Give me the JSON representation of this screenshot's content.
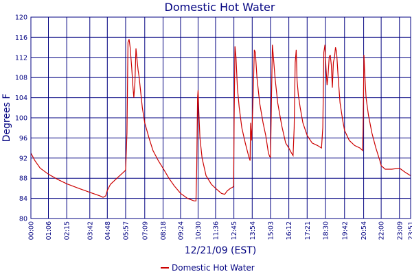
{
  "chart_data": {
    "type": "line",
    "title": "Domestic Hot Water",
    "xlabel": "12/21/09 (EST)",
    "ylabel": "Degrees F",
    "ylim": [
      80,
      120
    ],
    "yticks": [
      80,
      84,
      88,
      92,
      96,
      100,
      104,
      108,
      112,
      116,
      120
    ],
    "xlim": [
      0,
      1431
    ],
    "xticks": [
      {
        "label": "00:00",
        "min": 0
      },
      {
        "label": "01:06",
        "min": 66
      },
      {
        "label": "02:15",
        "min": 135
      },
      {
        "label": "03:42",
        "min": 222
      },
      {
        "label": "04:48",
        "min": 288
      },
      {
        "label": "05:57",
        "min": 357
      },
      {
        "label": "07:09",
        "min": 429
      },
      {
        "label": "08:18",
        "min": 498
      },
      {
        "label": "09:24",
        "min": 564
      },
      {
        "label": "10:30",
        "min": 630
      },
      {
        "label": "11:36",
        "min": 696
      },
      {
        "label": "12:45",
        "min": 765
      },
      {
        "label": "13:54",
        "min": 834
      },
      {
        "label": "15:03",
        "min": 903
      },
      {
        "label": "16:12",
        "min": 972
      },
      {
        "label": "17:21",
        "min": 1041
      },
      {
        "label": "18:30",
        "min": 1110
      },
      {
        "label": "19:42",
        "min": 1182
      },
      {
        "label": "20:54",
        "min": 1254
      },
      {
        "label": "22:00",
        "min": 1320
      },
      {
        "label": "23:09",
        "min": 1389
      },
      {
        "label": "23:51",
        "min": 1431
      }
    ],
    "grid": true,
    "legend_position": "bottom",
    "series": [
      {
        "name": "Domestic Hot Water",
        "color": "#cc0000",
        "points": [
          [
            0,
            93.0
          ],
          [
            15,
            91.5
          ],
          [
            35,
            90.0
          ],
          [
            66,
            88.8
          ],
          [
            100,
            87.8
          ],
          [
            135,
            86.9
          ],
          [
            180,
            86.0
          ],
          [
            222,
            85.2
          ],
          [
            260,
            84.5
          ],
          [
            272,
            84.2
          ],
          [
            282,
            84.5
          ],
          [
            288,
            85.6
          ],
          [
            300,
            86.8
          ],
          [
            320,
            87.8
          ],
          [
            345,
            89.0
          ],
          [
            355,
            89.5
          ],
          [
            357,
            89.7
          ],
          [
            362,
            97.0
          ],
          [
            366,
            115.0
          ],
          [
            370,
            115.6
          ],
          [
            374,
            114.0
          ],
          [
            380,
            110.0
          ],
          [
            384,
            106.5
          ],
          [
            388,
            104.0
          ],
          [
            392,
            107.0
          ],
          [
            396,
            113.8
          ],
          [
            400,
            111.5
          ],
          [
            404,
            109.5
          ],
          [
            408,
            108.0
          ],
          [
            413,
            105.5
          ],
          [
            420,
            102.0
          ],
          [
            429,
            99.0
          ],
          [
            445,
            96.0
          ],
          [
            460,
            93.5
          ],
          [
            480,
            91.5
          ],
          [
            498,
            90.0
          ],
          [
            520,
            88.0
          ],
          [
            540,
            86.5
          ],
          [
            564,
            85.0
          ],
          [
            590,
            84.0
          ],
          [
            615,
            83.5
          ],
          [
            622,
            83.5
          ],
          [
            625,
            90.0
          ],
          [
            628,
            104.0
          ],
          [
            630,
            105.5
          ],
          [
            633,
            101.0
          ],
          [
            637,
            96.0
          ],
          [
            645,
            92.0
          ],
          [
            660,
            88.5
          ],
          [
            680,
            86.8
          ],
          [
            696,
            86.0
          ],
          [
            718,
            85.0
          ],
          [
            730,
            84.8
          ],
          [
            740,
            85.5
          ],
          [
            752,
            86.0
          ],
          [
            760,
            86.2
          ],
          [
            764,
            86.4
          ],
          [
            766,
            100.0
          ],
          [
            769,
            114.2
          ],
          [
            773,
            112.0
          ],
          [
            778,
            106.0
          ],
          [
            785,
            102.0
          ],
          [
            795,
            98.0
          ],
          [
            808,
            95.0
          ],
          [
            820,
            92.5
          ],
          [
            826,
            91.5
          ],
          [
            828,
            99.0
          ],
          [
            832,
            95.5
          ],
          [
            838,
            105.0
          ],
          [
            842,
            113.5
          ],
          [
            846,
            113.0
          ],
          [
            852,
            108.0
          ],
          [
            862,
            103.0
          ],
          [
            875,
            99.0
          ],
          [
            885,
            96.5
          ],
          [
            895,
            93.0
          ],
          [
            900,
            92.3
          ],
          [
            903,
            92.2
          ],
          [
            907,
            105.0
          ],
          [
            910,
            114.5
          ],
          [
            914,
            112.0
          ],
          [
            920,
            108.0
          ],
          [
            930,
            103.0
          ],
          [
            945,
            98.5
          ],
          [
            960,
            95.0
          ],
          [
            972,
            94.0
          ],
          [
            982,
            93.0
          ],
          [
            988,
            92.5
          ],
          [
            992,
            98.0
          ],
          [
            996,
            111.0
          ],
          [
            1000,
            113.5
          ],
          [
            1003,
            107.5
          ],
          [
            1008,
            104.5
          ],
          [
            1015,
            102.0
          ],
          [
            1025,
            99.0
          ],
          [
            1041,
            96.5
          ],
          [
            1060,
            95.0
          ],
          [
            1080,
            94.5
          ],
          [
            1095,
            94.0
          ],
          [
            1100,
            98.0
          ],
          [
            1104,
            113.0
          ],
          [
            1108,
            114.5
          ],
          [
            1112,
            110.0
          ],
          [
            1116,
            106.5
          ],
          [
            1120,
            108.5
          ],
          [
            1124,
            112.0
          ],
          [
            1128,
            112.5
          ],
          [
            1132,
            110.5
          ],
          [
            1136,
            106.0
          ],
          [
            1140,
            111.0
          ],
          [
            1144,
            112.0
          ],
          [
            1148,
            114.0
          ],
          [
            1152,
            113.0
          ],
          [
            1158,
            108.0
          ],
          [
            1165,
            103.0
          ],
          [
            1175,
            99.5
          ],
          [
            1182,
            97.5
          ],
          [
            1200,
            95.5
          ],
          [
            1220,
            94.5
          ],
          [
            1240,
            94.0
          ],
          [
            1250,
            93.5
          ],
          [
            1252,
            98.0
          ],
          [
            1255,
            112.5
          ],
          [
            1258,
            109.0
          ],
          [
            1263,
            104.0
          ],
          [
            1272,
            100.5
          ],
          [
            1285,
            97.0
          ],
          [
            1300,
            94.0
          ],
          [
            1315,
            91.5
          ],
          [
            1320,
            90.5
          ],
          [
            1335,
            89.8
          ],
          [
            1360,
            89.8
          ],
          [
            1389,
            90.0
          ],
          [
            1410,
            89.2
          ],
          [
            1431,
            88.5
          ]
        ]
      }
    ],
    "legend": [
      {
        "label": "Domestic Hot Water",
        "color": "#cc0000"
      }
    ]
  }
}
